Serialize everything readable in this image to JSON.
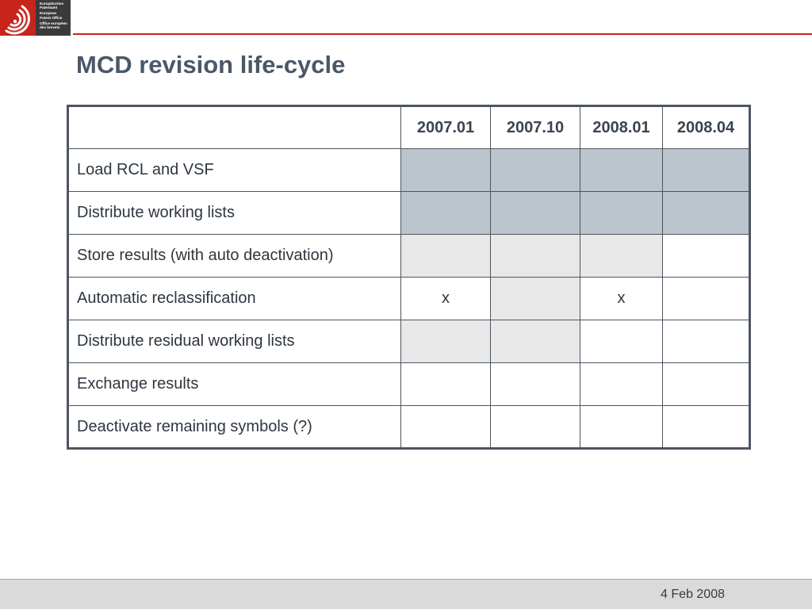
{
  "logo": {
    "icon": "epo-logo-icon",
    "lines": [
      "Europäisches",
      "Patentamt",
      "European",
      "Patent Office",
      "Office européen",
      "des brevets"
    ]
  },
  "title": "MCD revision life-cycle",
  "table": {
    "columns": [
      "2007.01",
      "2007.10",
      "2008.01",
      "2008.04"
    ],
    "rows": [
      {
        "label": "Load RCL and VSF",
        "cells": [
          {
            "text": "",
            "shade": "dark"
          },
          {
            "text": "",
            "shade": "dark"
          },
          {
            "text": "",
            "shade": "dark"
          },
          {
            "text": "",
            "shade": "dark"
          }
        ]
      },
      {
        "label": "Distribute working lists",
        "cells": [
          {
            "text": "",
            "shade": "dark"
          },
          {
            "text": "",
            "shade": "dark"
          },
          {
            "text": "",
            "shade": "dark"
          },
          {
            "text": "",
            "shade": "dark"
          }
        ]
      },
      {
        "label": "Store results (with auto deactivation)",
        "cells": [
          {
            "text": "",
            "shade": "light"
          },
          {
            "text": "",
            "shade": "light"
          },
          {
            "text": "",
            "shade": "light"
          },
          {
            "text": "",
            "shade": "white"
          }
        ]
      },
      {
        "label": "Automatic reclassification",
        "cells": [
          {
            "text": "x",
            "shade": "white"
          },
          {
            "text": "",
            "shade": "light"
          },
          {
            "text": "x",
            "shade": "white"
          },
          {
            "text": "",
            "shade": "white"
          }
        ]
      },
      {
        "label": "Distribute residual working lists",
        "cells": [
          {
            "text": "",
            "shade": "light"
          },
          {
            "text": "",
            "shade": "light"
          },
          {
            "text": "",
            "shade": "white"
          },
          {
            "text": "",
            "shade": "white"
          }
        ]
      },
      {
        "label": "Exchange results",
        "cells": [
          {
            "text": "",
            "shade": "white"
          },
          {
            "text": "",
            "shade": "white"
          },
          {
            "text": "",
            "shade": "white"
          },
          {
            "text": "",
            "shade": "white"
          }
        ]
      },
      {
        "label": "Deactivate remaining symbols (?)",
        "cells": [
          {
            "text": "",
            "shade": "white"
          },
          {
            "text": "",
            "shade": "white"
          },
          {
            "text": "",
            "shade": "white"
          },
          {
            "text": "",
            "shade": "white"
          }
        ]
      }
    ]
  },
  "footer": {
    "date": "4 Feb 2008"
  },
  "colors": {
    "accent": "#c8241b",
    "title": "#4a5868",
    "dark_shade": "#bcc5cd",
    "light_shade": "#e8e8e8",
    "footer_bg": "#dadada"
  }
}
